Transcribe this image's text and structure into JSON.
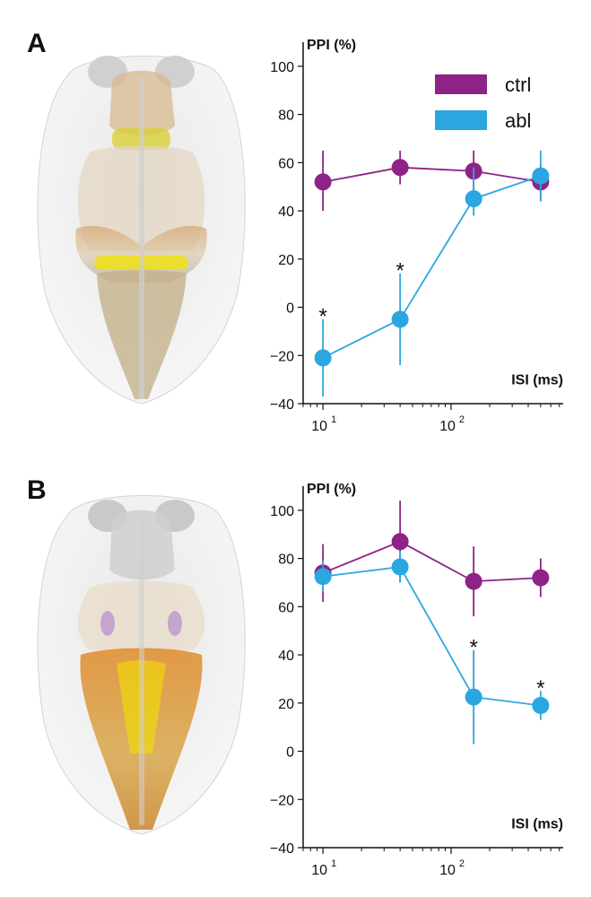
{
  "panels": [
    {
      "letter": "A"
    },
    {
      "letter": "B"
    }
  ],
  "colors": {
    "ctrl": "#8e2387",
    "abl": "#2aa7e0",
    "axis": "#111111"
  },
  "chart_data": [
    {
      "panel": "A",
      "type": "line",
      "xscale": "log",
      "ylabel": "PPI (%)",
      "xlabel": "ISI (ms)",
      "ylim": [
        -40,
        110
      ],
      "yticks": [
        -40,
        -20,
        0,
        20,
        40,
        60,
        80,
        100
      ],
      "xlim": [
        7,
        750
      ],
      "xticks": [
        10,
        100
      ],
      "xtick_labels": [
        {
          "base": "10",
          "exp": "1"
        },
        {
          "base": "10",
          "exp": "2"
        }
      ],
      "x": [
        10,
        40,
        150,
        500
      ],
      "legend": {
        "position": "top-right",
        "entries": [
          "ctrl",
          "abl"
        ]
      },
      "series": [
        {
          "name": "ctrl",
          "values": [
            52,
            58,
            56.5,
            52
          ],
          "err_low": [
            40,
            51,
            48,
            44
          ],
          "err_high": [
            65,
            65,
            65,
            59
          ]
        },
        {
          "name": "abl",
          "values": [
            -21,
            -5,
            45,
            54.5
          ],
          "err_low": [
            -37,
            -24,
            38,
            44
          ],
          "err_high": [
            -5,
            14,
            58,
            65
          ]
        }
      ],
      "annotations": [
        {
          "x": 10,
          "y": -3,
          "text": "*"
        },
        {
          "x": 40,
          "y": 16,
          "text": "*"
        }
      ]
    },
    {
      "panel": "B",
      "type": "line",
      "xscale": "log",
      "ylabel": "PPI (%)",
      "xlabel": "ISI (ms)",
      "ylim": [
        -40,
        110
      ],
      "yticks": [
        -40,
        -20,
        0,
        20,
        40,
        60,
        80,
        100
      ],
      "xlim": [
        7,
        750
      ],
      "xticks": [
        10,
        100
      ],
      "xtick_labels": [
        {
          "base": "10",
          "exp": "1"
        },
        {
          "base": "10",
          "exp": "2"
        }
      ],
      "x": [
        10,
        40,
        150,
        500
      ],
      "series": [
        {
          "name": "ctrl",
          "values": [
            74,
            87,
            70.5,
            72
          ],
          "err_low": [
            62,
            70,
            56,
            64
          ],
          "err_high": [
            86,
            104,
            85,
            80
          ]
        },
        {
          "name": "abl",
          "values": [
            72.5,
            76.5,
            22.5,
            19
          ],
          "err_low": [
            66,
            70,
            3,
            13
          ],
          "err_high": [
            79,
            83,
            42,
            25
          ]
        }
      ],
      "annotations": [
        {
          "x": 150,
          "y": 44,
          "text": "*"
        },
        {
          "x": 500,
          "y": 27,
          "text": "*"
        }
      ]
    }
  ]
}
